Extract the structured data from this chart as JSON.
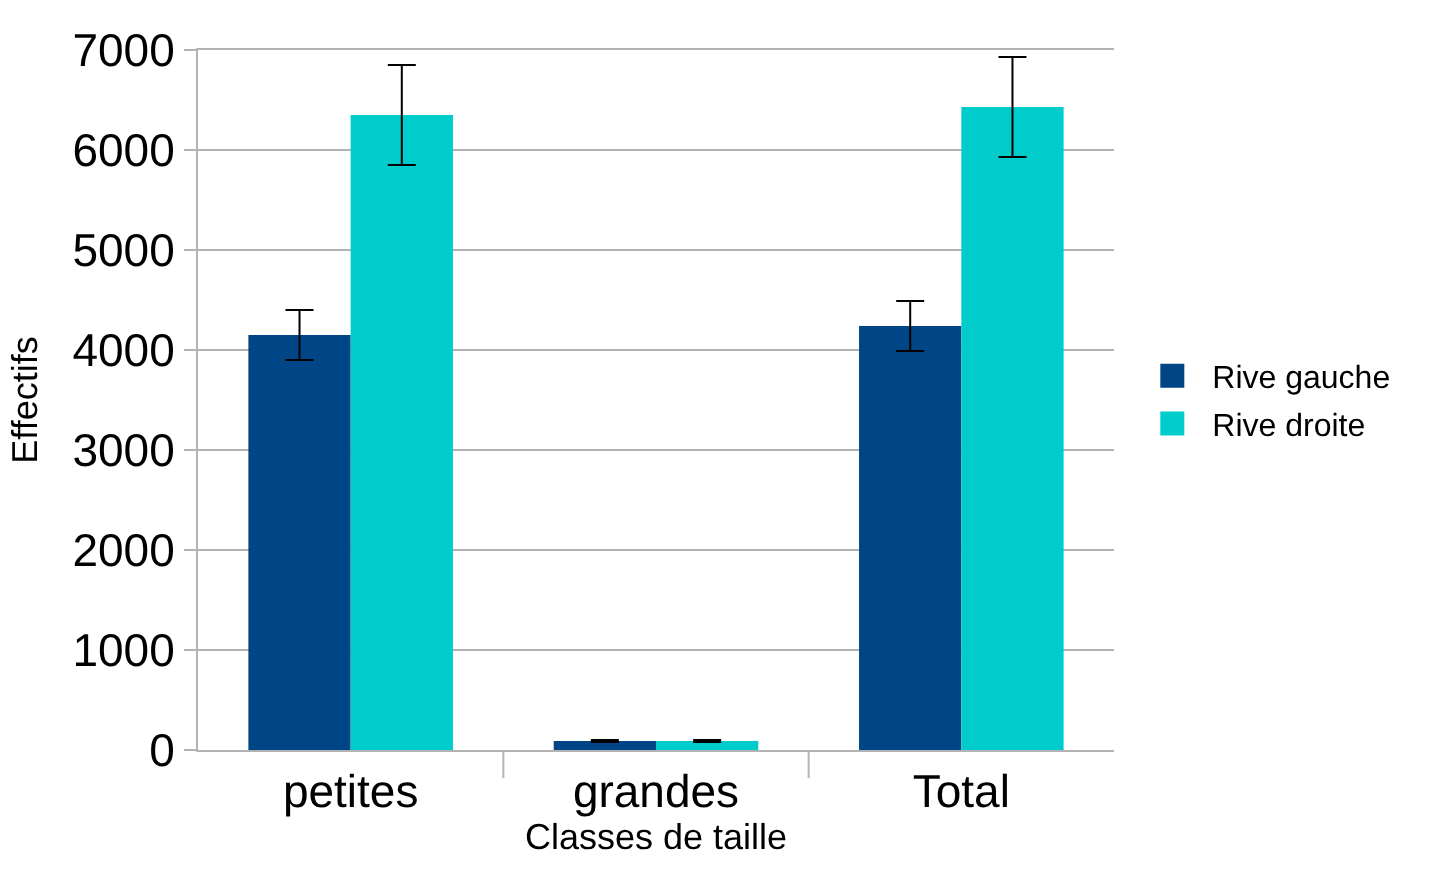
{
  "chart_data": {
    "type": "bar",
    "xlabel": "Classes de taille",
    "ylabel": "Effectifs",
    "categories": [
      "petites",
      "grandes",
      "Total"
    ],
    "series": [
      {
        "name": "Rive gauche",
        "color": "#004586",
        "values": [
          4150,
          90,
          4240
        ],
        "errors": [
          250,
          10,
          250
        ]
      },
      {
        "name": "Rive droite",
        "color": "#00cccc",
        "values": [
          6350,
          90,
          6430
        ],
        "errors": [
          500,
          10,
          500
        ]
      }
    ],
    "ylim": [
      0,
      7000
    ],
    "yticks": [
      0,
      1000,
      2000,
      3000,
      4000,
      5000,
      6000,
      7000
    ],
    "grid": "y",
    "legend": "right"
  }
}
